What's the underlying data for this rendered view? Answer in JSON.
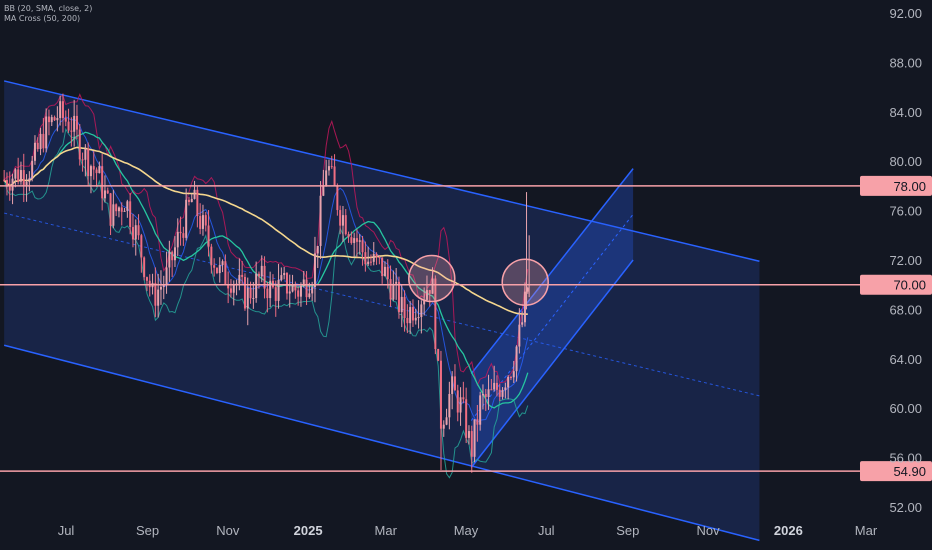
{
  "indicators": [
    "BB (20, SMA, close, 2)",
    "MA Cross (50, 200)"
  ],
  "colors": {
    "background": "#131722",
    "candle_up": "#e8a3ad",
    "candle_down": "#f06e82",
    "channel": "#2962ff",
    "channel_fill": "#1e2f66",
    "level_line": "#f7a1a8",
    "level_label_bg": "#f7a1a8",
    "ma50": "#26c6a0",
    "ma200": "#f5d78e",
    "bb_upper": "#c2185b",
    "bb_lower": "#26a69a",
    "bb_basis": "#2962ff",
    "circle": "#f7a1a8"
  },
  "chart_data": {
    "type": "candlestick",
    "title": "",
    "x_ticks": [
      {
        "label": "Jul",
        "date": "2024-07"
      },
      {
        "label": "Sep",
        "date": "2024-09"
      },
      {
        "label": "Nov",
        "date": "2024-11"
      },
      {
        "label": "2025",
        "date": "2025-01"
      },
      {
        "label": "Mar",
        "date": "2025-03"
      },
      {
        "label": "May",
        "date": "2025-05"
      },
      {
        "label": "Jul",
        "date": "2025-07"
      },
      {
        "label": "Sep",
        "date": "2025-09"
      },
      {
        "label": "Nov",
        "date": "2025-11"
      },
      {
        "label": "2026",
        "date": "2026-01"
      },
      {
        "label": "Mar",
        "date": "2026-03"
      }
    ],
    "y_ticks": [
      "92.00",
      "88.00",
      "84.00",
      "80.00",
      "76.00",
      "72.00",
      "68.00",
      "64.00",
      "60.00",
      "56.00",
      "52.00"
    ],
    "ylim": [
      51,
      93
    ],
    "price_levels": [
      {
        "label": "78.00",
        "value": 78.0
      },
      {
        "label": "70.00",
        "value": 70.0
      },
      {
        "label": "54.90",
        "value": 54.9
      }
    ],
    "descending_channel": {
      "upper": [
        {
          "date": "2024-05-15",
          "value": 86.5
        },
        {
          "date": "2025-12-10",
          "value": 71.9
        }
      ],
      "lower": [
        {
          "date": "2024-05-15",
          "value": 65.1
        },
        {
          "date": "2025-12-10",
          "value": 49.3
        }
      ],
      "middle": [
        {
          "date": "2024-05-15",
          "value": 75.8
        },
        {
          "date": "2025-12-10",
          "value": 61.0
        }
      ]
    },
    "ascending_channel": {
      "lower": [
        {
          "date": "2025-05-05",
          "value": 55.2
        },
        {
          "date": "2025-09-05",
          "value": 72.0
        }
      ],
      "upper": [
        {
          "date": "2025-05-05",
          "value": 62.8
        },
        {
          "date": "2025-09-05",
          "value": 79.4
        }
      ]
    },
    "highlight_circles": [
      {
        "date": "2025-04-05",
        "value": 70.5
      },
      {
        "date": "2025-06-15",
        "value": 70.2
      }
    ],
    "candles": [
      [
        "2024-05-15",
        78.5
      ],
      [
        "2024-05-25",
        79.0
      ],
      [
        "2024-06-05",
        79.5
      ],
      [
        "2024-06-15",
        82.5
      ],
      [
        "2024-06-25",
        83.8
      ],
      [
        "2024-07-05",
        83.0
      ],
      [
        "2024-07-15",
        80.5
      ],
      [
        "2024-07-25",
        79.0
      ],
      [
        "2024-08-05",
        75.5
      ],
      [
        "2024-08-15",
        77.0
      ],
      [
        "2024-08-25",
        73.5
      ],
      [
        "2024-09-05",
        69.0
      ],
      [
        "2024-09-15",
        70.5
      ],
      [
        "2024-09-25",
        74.0
      ],
      [
        "2024-10-05",
        77.0
      ],
      [
        "2024-10-15",
        74.0
      ],
      [
        "2024-10-25",
        71.0
      ],
      [
        "2024-11-05",
        70.5
      ],
      [
        "2024-11-15",
        69.0
      ],
      [
        "2024-11-25",
        70.5
      ],
      [
        "2024-12-05",
        69.5
      ],
      [
        "2024-12-15",
        70.0
      ],
      [
        "2024-12-25",
        69.5
      ],
      [
        "2025-01-05",
        71.0
      ],
      [
        "2025-01-15",
        80.0
      ],
      [
        "2025-01-25",
        76.0
      ],
      [
        "2025-02-05",
        74.0
      ],
      [
        "2025-02-15",
        72.0
      ],
      [
        "2025-02-25",
        71.5
      ],
      [
        "2025-03-05",
        70.0
      ],
      [
        "2025-03-15",
        67.5
      ],
      [
        "2025-03-25",
        68.5
      ],
      [
        "2025-04-05",
        70.5
      ],
      [
        "2025-04-12",
        59.0
      ],
      [
        "2025-04-20",
        61.5
      ],
      [
        "2025-04-28",
        60.0
      ],
      [
        "2025-05-05",
        56.5
      ],
      [
        "2025-05-12",
        60.5
      ],
      [
        "2025-05-20",
        61.0
      ],
      [
        "2025-05-28",
        62.0
      ],
      [
        "2025-06-05",
        63.5
      ],
      [
        "2025-06-12",
        66.5
      ],
      [
        "2025-06-18",
        70.5
      ]
    ]
  }
}
